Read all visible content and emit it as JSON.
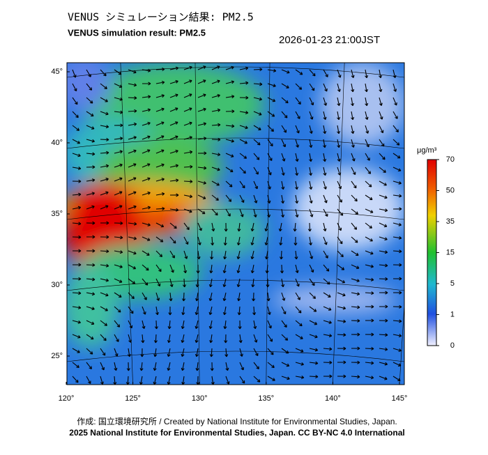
{
  "header": {
    "title": "VENUS シミュレーション結果: PM2.5",
    "subtitle": "VENUS simulation result: PM2.5",
    "timestamp": "2026-01-23 21:00JST"
  },
  "map": {
    "lat_labels": [
      "45°",
      "40°",
      "35°",
      "30°",
      "25°"
    ],
    "lon_labels": [
      "120°",
      "125°",
      "130°",
      "135°",
      "140°",
      "145°"
    ]
  },
  "colorbar": {
    "unit": "μg/m³",
    "ticks": [
      70,
      50,
      35,
      15,
      5,
      1,
      0
    ]
  },
  "footer": {
    "credit": "作成: 国立環境研究所 / Created by National Institute for Environmental Studies, Japan.",
    "license": "2025 National Institute for Environmental Studies, Japan. CC BY-NC 4.0 International"
  }
}
